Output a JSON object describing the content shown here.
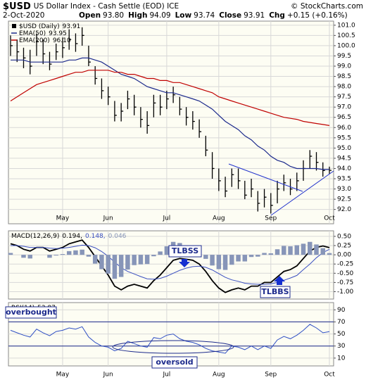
{
  "header": {
    "symbol": "$USD",
    "description": "US Dollar Index - Cash Settle (EOD) ICE",
    "date": "2-Oct-2020",
    "open_label": "Open",
    "open": "93.80",
    "high_label": "High",
    "low_label": "Low",
    "close_label": "Close",
    "chg_label": "Chg",
    "chg": "+0.15 (+0.16%)",
    "credit": "© StockCharts.com"
  },
  "chart_data": [
    {
      "type": "ohlc",
      "categories": [
        null,
        null,
        null,
        null,
        null,
        null,
        null,
        null,
        "May",
        null,
        null,
        null,
        null,
        null,
        null,
        "Jun",
        null,
        null,
        null,
        null,
        null,
        null,
        null,
        null,
        "Jul",
        null,
        null,
        null,
        null,
        null,
        null,
        null,
        "Aug",
        null,
        null,
        null,
        null,
        null,
        null,
        null,
        "Sep",
        null,
        null,
        null,
        null,
        null,
        null,
        null,
        null,
        "Oct"
      ],
      "series": [
        {
          "name": "$USD (Daily)",
          "color": "#000000",
          "high": [
            100.5,
            100.3,
            99.9,
            99.8,
            100.6,
            100.3,
            99.7,
            100.1,
            100.4,
            100.8,
            100.6,
            100.9,
            100.0,
            99.0,
            98.4,
            98.0,
            97.3,
            97.2,
            97.8,
            97.6,
            97.0,
            96.8,
            97.6,
            97.6,
            97.8,
            98.0,
            97.5,
            97.0,
            96.8,
            96.4,
            95.6,
            94.8,
            94.0,
            93.6,
            94.0,
            94.0,
            93.4,
            93.5,
            92.9,
            93.0,
            92.8,
            93.4,
            93.7,
            93.5,
            93.8,
            94.4,
            94.9,
            94.8,
            94.3,
            94.09
          ],
          "low": [
            99.5,
            99.2,
            98.9,
            98.6,
            99.5,
            99.1,
            98.8,
            99.3,
            99.4,
            99.8,
            99.7,
            100.0,
            99.0,
            98.1,
            97.4,
            97.1,
            96.3,
            96.3,
            96.9,
            96.6,
            96.0,
            95.7,
            96.5,
            96.6,
            96.9,
            97.2,
            96.6,
            96.1,
            95.9,
            95.5,
            94.6,
            93.5,
            92.9,
            92.6,
            93.1,
            93.0,
            92.5,
            92.6,
            91.9,
            92.1,
            91.8,
            92.3,
            92.9,
            92.7,
            92.9,
            93.4,
            94.0,
            93.9,
            93.6,
            93.74
          ],
          "values": [
            100.0,
            99.7,
            99.4,
            99.0,
            100.2,
            99.6,
            99.1,
            99.7,
            99.9,
            100.3,
            100.1,
            100.5,
            99.2,
            98.4,
            97.8,
            97.5,
            96.6,
            96.8,
            97.4,
            97.0,
            96.4,
            96.1,
            97.2,
            97.0,
            97.4,
            97.6,
            96.9,
            96.5,
            96.3,
            95.8,
            94.9,
            94.0,
            93.4,
            92.9,
            93.7,
            93.4,
            92.7,
            93.0,
            92.3,
            92.6,
            92.2,
            93.0,
            93.3,
            93.0,
            93.4,
            94.0,
            94.6,
            94.3,
            93.9,
            93.91
          ]
        },
        {
          "name": "EMA(50)",
          "color": "#1c2a8c",
          "values": [
            99.3,
            99.3,
            99.3,
            99.2,
            99.2,
            99.2,
            99.2,
            99.2,
            99.2,
            99.3,
            99.3,
            99.4,
            99.4,
            99.3,
            99.2,
            99.0,
            98.8,
            98.6,
            98.5,
            98.4,
            98.2,
            98.0,
            97.9,
            97.8,
            97.7,
            97.7,
            97.6,
            97.5,
            97.4,
            97.3,
            97.1,
            96.9,
            96.6,
            96.3,
            96.1,
            95.9,
            95.6,
            95.4,
            95.1,
            94.9,
            94.6,
            94.4,
            94.3,
            94.1,
            94.0,
            94.0,
            94.0,
            94.0,
            93.95,
            93.95
          ]
        },
        {
          "name": "EMA(200)",
          "color": "#c00000",
          "values": [
            97.3,
            97.5,
            97.7,
            97.9,
            98.1,
            98.2,
            98.3,
            98.4,
            98.5,
            98.6,
            98.7,
            98.7,
            98.8,
            98.8,
            98.8,
            98.8,
            98.7,
            98.7,
            98.6,
            98.6,
            98.5,
            98.4,
            98.4,
            98.3,
            98.3,
            98.2,
            98.2,
            98.1,
            98.0,
            97.9,
            97.8,
            97.7,
            97.5,
            97.4,
            97.3,
            97.2,
            97.1,
            97.0,
            96.9,
            96.8,
            96.7,
            96.6,
            96.5,
            96.45,
            96.4,
            96.3,
            96.25,
            96.2,
            96.15,
            96.1
          ],
          "value_labels": [
            null,
            null,
            null,
            null,
            null,
            null,
            null,
            null,
            null,
            null,
            null,
            null,
            null,
            null,
            null,
            null,
            null,
            null,
            null,
            null,
            null,
            null,
            null,
            null,
            null,
            null,
            null,
            null,
            null,
            null,
            null,
            null,
            null,
            null,
            null,
            null,
            null,
            null,
            null,
            null,
            null,
            null,
            null,
            null,
            null,
            null,
            null,
            null,
            null,
            "96.10"
          ]
        }
      ],
      "ylim": [
        91.3,
        101.2
      ],
      "yticks": [
        {
          "value": 92,
          "label": "92.0"
        },
        {
          "value": 92.5,
          "label": "92.5"
        },
        {
          "value": 93,
          "label": "93.0"
        },
        {
          "value": 93.5,
          "label": "93.5"
        },
        {
          "value": 94,
          "label": "94.0"
        },
        {
          "value": 94.5,
          "label": "94.5"
        },
        {
          "value": 95,
          "label": "95.0"
        },
        {
          "value": 95.5,
          "label": "95.5"
        },
        {
          "value": 96,
          "label": "96.0"
        },
        {
          "value": 96.5,
          "label": "96.5"
        },
        {
          "value": 97,
          "label": "97.0"
        },
        {
          "value": 97.5,
          "label": "97.5"
        },
        {
          "value": 98,
          "label": "98.0"
        },
        {
          "value": 98.5,
          "label": "98.5"
        },
        {
          "value": 99,
          "label": "99.0"
        },
        {
          "value": 99.5,
          "label": "99.5"
        },
        {
          "value": 100,
          "label": "100.0"
        },
        {
          "value": 100.5,
          "label": "100.5"
        },
        {
          "value": 101,
          "label": "101.0"
        }
      ],
      "grid": true
    },
    {
      "type": "macd",
      "name": "MACD(12,26,9)",
      "series": [
        {
          "color": "#000000",
          "values": [
            0.3,
            0.25,
            0.15,
            0.1,
            0.2,
            0.2,
            0.1,
            0.15,
            0.2,
            0.3,
            0.35,
            0.4,
            0.2,
            -0.05,
            -0.3,
            -0.55,
            -0.85,
            -0.95,
            -0.85,
            -0.8,
            -0.85,
            -0.9,
            -0.7,
            -0.55,
            -0.35,
            -0.15,
            -0.1,
            -0.12,
            -0.15,
            -0.25,
            -0.45,
            -0.7,
            -0.9,
            -1.02,
            -0.95,
            -0.9,
            -0.95,
            -0.85,
            -0.85,
            -0.75,
            -0.75,
            -0.6,
            -0.45,
            -0.4,
            -0.3,
            -0.1,
            0.1,
            0.2,
            0.24,
            0.194
          ],
          "value_labels": [
            null,
            null,
            null,
            null,
            null,
            null,
            null,
            null,
            null,
            null,
            null,
            null,
            null,
            null,
            null,
            null,
            null,
            null,
            null,
            null,
            null,
            null,
            null,
            null,
            null,
            null,
            null,
            null,
            null,
            null,
            null,
            null,
            null,
            null,
            null,
            null,
            null,
            null,
            null,
            null,
            null,
            null,
            null,
            null,
            null,
            null,
            null,
            null,
            null,
            "0.194,"
          ]
        },
        {
          "color": "#3a4fc0",
          "values": [
            0.25,
            0.25,
            0.23,
            0.2,
            0.2,
            0.2,
            0.18,
            0.17,
            0.18,
            0.2,
            0.23,
            0.26,
            0.25,
            0.19,
            0.09,
            -0.04,
            -0.2,
            -0.35,
            -0.45,
            -0.52,
            -0.59,
            -0.65,
            -0.66,
            -0.64,
            -0.58,
            -0.5,
            -0.42,
            -0.36,
            -0.32,
            -0.31,
            -0.34,
            -0.41,
            -0.51,
            -0.61,
            -0.68,
            -0.72,
            -0.77,
            -0.79,
            -0.8,
            -0.8,
            -0.79,
            -0.75,
            -0.69,
            -0.63,
            -0.56,
            -0.4,
            -0.25,
            -0.08,
            0.06,
            0.148
          ],
          "value_labels": [
            null,
            null,
            null,
            null,
            null,
            null,
            null,
            null,
            null,
            null,
            null,
            null,
            null,
            null,
            null,
            null,
            null,
            null,
            null,
            null,
            null,
            null,
            null,
            null,
            null,
            null,
            null,
            null,
            null,
            null,
            null,
            null,
            null,
            null,
            null,
            null,
            null,
            null,
            null,
            null,
            null,
            null,
            null,
            null,
            null,
            null,
            null,
            null,
            null,
            "0.148,"
          ]
        },
        {
          "color": "#8795b8",
          "style": "bar",
          "values": [
            0.05,
            0.0,
            -0.08,
            -0.1,
            0.0,
            0.0,
            -0.08,
            -0.02,
            0.02,
            0.1,
            0.12,
            0.14,
            -0.05,
            -0.24,
            -0.39,
            -0.51,
            -0.65,
            -0.6,
            -0.4,
            -0.28,
            -0.26,
            -0.25,
            -0.04,
            0.09,
            0.23,
            0.35,
            0.32,
            0.24,
            0.17,
            0.06,
            -0.11,
            -0.29,
            -0.39,
            -0.41,
            -0.27,
            -0.18,
            -0.18,
            -0.06,
            -0.05,
            0.05,
            0.04,
            0.15,
            0.24,
            0.23,
            0.26,
            0.3,
            0.35,
            0.28,
            0.18,
            0.046
          ]
        }
      ],
      "ylim": [
        -1.2,
        0.65
      ],
      "yticks": [
        {
          "value": 0.5,
          "label": "0.50"
        },
        {
          "value": 0.25,
          "label": "0.25"
        },
        {
          "value": 0,
          "label": "0.00"
        },
        {
          "value": -0.25,
          "label": "-0.25"
        },
        {
          "value": -0.5,
          "label": "-0.50"
        },
        {
          "value": -0.75,
          "label": "-0.75"
        },
        {
          "value": -1,
          "label": "-1.00"
        }
      ],
      "grid": true,
      "annotations": [
        "TLBSS",
        "TLBBS"
      ]
    },
    {
      "type": "line",
      "name": "RSI(14)",
      "color": "#2f4fc4",
      "values": [
        56,
        52,
        48,
        45,
        58,
        52,
        47,
        54,
        56,
        60,
        58,
        62,
        45,
        36,
        30,
        28,
        22,
        26,
        38,
        34,
        30,
        28,
        44,
        42,
        48,
        50,
        42,
        38,
        36,
        32,
        26,
        22,
        20,
        18,
        30,
        28,
        24,
        30,
        24,
        30,
        26,
        40,
        46,
        42,
        48,
        56,
        66,
        60,
        52,
        53.87
      ],
      "levels": [
        70,
        30
      ],
      "ylim": [
        -3,
        102
      ],
      "yticks": [
        90,
        70,
        50,
        30,
        10
      ],
      "grid": true,
      "annotations": [
        "overbought",
        "oversold"
      ]
    }
  ]
}
